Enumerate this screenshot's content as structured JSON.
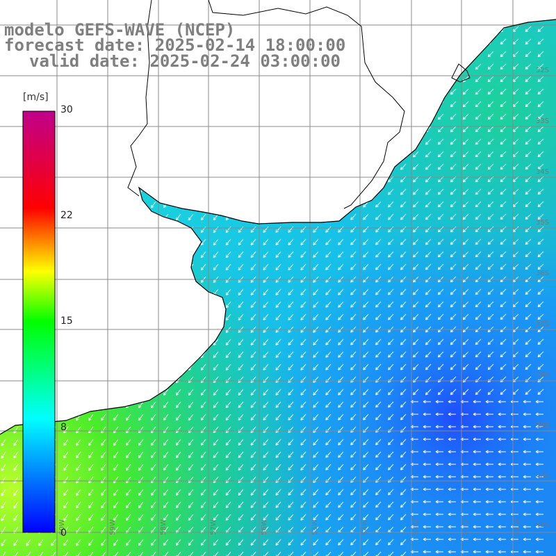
{
  "header": {
    "title_line1": "modelo GEFS-WAVE (NCEP)",
    "title_line2": "forecast date: 2025-02-14 18:00:00",
    "title_line3": "valid date: 2025-02-24 03:00:00"
  },
  "colorbar": {
    "unit": "[m/s]",
    "ticks": [
      {
        "label": "30",
        "value": 30
      },
      {
        "label": "22",
        "value": 22
      },
      {
        "label": "15",
        "value": 15
      },
      {
        "label": "8",
        "value": 8
      },
      {
        "label": "0",
        "value": 0
      }
    ],
    "stops": [
      "#0000ff",
      "#00ffff",
      "#00ff00",
      "#ffff00",
      "#ff0000",
      "#c0008c"
    ]
  },
  "map": {
    "lat_labels": [
      "32S",
      "33S",
      "34S",
      "35S",
      "36S",
      "37S",
      "38S",
      "39S",
      "40S",
      "41S"
    ],
    "lon_labels": [
      "60W",
      "59W",
      "58W",
      "57W",
      "56W",
      "55W",
      "54W",
      "53W",
      "52W",
      "51W"
    ],
    "colors": {
      "land": "#ffffff",
      "coast": "#000000",
      "grid": "#888888",
      "arrow": "#ffffff"
    },
    "wind_direction": "southwestward"
  }
}
